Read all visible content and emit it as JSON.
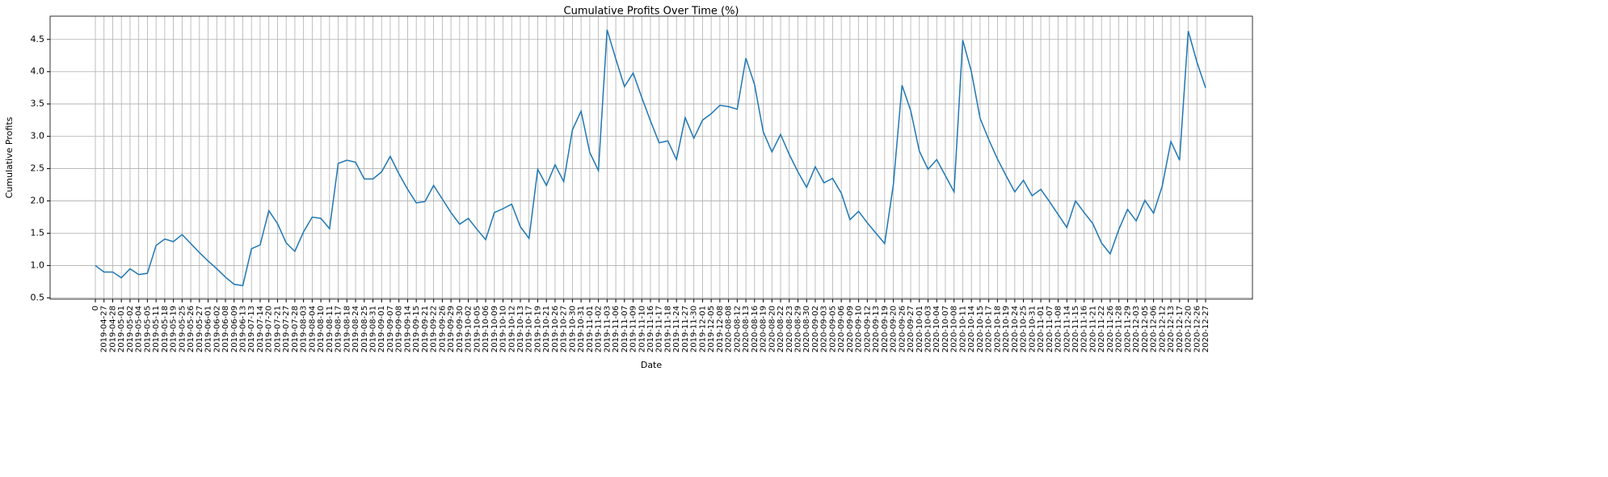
{
  "chart_data": {
    "type": "line",
    "title": "Cumulative Profits Over Time (%)",
    "x_label": "Date",
    "y_label": "Cumulative Profits",
    "categories": [
      "0",
      "2019-04-27",
      "2019-04-28",
      "2019-05-01",
      "2019-05-02",
      "2019-05-04",
      "2019-05-05",
      "2019-05-11",
      "2019-05-18",
      "2019-05-19",
      "2019-05-25",
      "2019-05-26",
      "2019-05-27",
      "2019-06-01",
      "2019-06-02",
      "2019-06-08",
      "2019-06-09",
      "2019-06-13",
      "2019-07-13",
      "2019-07-14",
      "2019-07-20",
      "2019-07-21",
      "2019-07-27",
      "2019-07-28",
      "2019-08-03",
      "2019-08-04",
      "2019-08-10",
      "2019-08-11",
      "2019-08-17",
      "2019-08-18",
      "2019-08-24",
      "2019-08-25",
      "2019-08-31",
      "2019-09-01",
      "2019-09-07",
      "2019-09-08",
      "2019-09-14",
      "2019-09-15",
      "2019-09-21",
      "2019-09-22",
      "2019-09-26",
      "2019-09-29",
      "2019-09-30",
      "2019-10-02",
      "2019-10-05",
      "2019-10-06",
      "2019-10-09",
      "2019-10-10",
      "2019-10-12",
      "2019-10-13",
      "2019-10-17",
      "2019-10-19",
      "2019-10-21",
      "2019-10-26",
      "2019-10-27",
      "2019-10-30",
      "2019-10-31",
      "2019-11-01",
      "2019-11-02",
      "2019-11-03",
      "2019-11-06",
      "2019-11-07",
      "2019-11-09",
      "2019-11-10",
      "2019-11-16",
      "2019-11-17",
      "2019-11-18",
      "2019-11-24",
      "2019-11-27",
      "2019-11-30",
      "2019-12-01",
      "2019-12-05",
      "2019-12-08",
      "2020-08-08",
      "2020-08-12",
      "2020-08-13",
      "2020-08-16",
      "2020-08-19",
      "2020-08-20",
      "2020-08-22",
      "2020-08-23",
      "2020-08-29",
      "2020-08-30",
      "2020-09-02",
      "2020-09-03",
      "2020-09-05",
      "2020-09-06",
      "2020-09-09",
      "2020-09-10",
      "2020-09-12",
      "2020-09-13",
      "2020-09-19",
      "2020-09-20",
      "2020-09-26",
      "2020-09-27",
      "2020-10-01",
      "2020-10-03",
      "2020-10-04",
      "2020-10-07",
      "2020-10-08",
      "2020-10-11",
      "2020-10-14",
      "2020-10-15",
      "2020-10-17",
      "2020-10-18",
      "2020-10-19",
      "2020-10-24",
      "2020-10-25",
      "2020-10-31",
      "2020-11-01",
      "2020-11-07",
      "2020-11-08",
      "2020-11-14",
      "2020-11-15",
      "2020-11-16",
      "2020-11-21",
      "2020-11-22",
      "2020-11-26",
      "2020-11-28",
      "2020-11-29",
      "2020-12-03",
      "2020-12-05",
      "2020-12-06",
      "2020-12-12",
      "2020-12-13",
      "2020-12-17",
      "2020-12-20",
      "2020-12-26",
      "2020-12-27"
    ],
    "series": [
      {
        "name": "Cumulative Profits",
        "color": "#1f77b4",
        "values": [
          1.0,
          0.9,
          0.9,
          0.81,
          0.95,
          0.86,
          0.88,
          1.31,
          1.41,
          1.37,
          1.48,
          1.34,
          1.2,
          1.07,
          0.95,
          0.82,
          0.71,
          0.69,
          1.26,
          1.32,
          1.85,
          1.65,
          1.35,
          1.22,
          1.52,
          1.75,
          1.73,
          1.57,
          2.58,
          2.63,
          2.6,
          2.34,
          2.34,
          2.45,
          2.69,
          2.42,
          2.18,
          1.97,
          1.99,
          2.24,
          2.03,
          1.82,
          1.64,
          1.73,
          1.56,
          1.4,
          1.82,
          1.88,
          1.95,
          1.6,
          1.42,
          2.49,
          2.24,
          2.56,
          2.3,
          3.1,
          3.39,
          2.75,
          2.47,
          4.65,
          4.2,
          3.77,
          3.98,
          3.6,
          3.24,
          2.9,
          2.93,
          2.64,
          3.29,
          2.97,
          3.25,
          3.35,
          3.48,
          3.46,
          3.42,
          4.21,
          3.8,
          3.07,
          2.76,
          3.03,
          2.72,
          2.45,
          2.21,
          2.53,
          2.28,
          2.35,
          2.12,
          1.71,
          1.84,
          1.66,
          1.5,
          1.34,
          2.25,
          3.79,
          3.4,
          2.77,
          2.49,
          2.64,
          2.39,
          2.14,
          4.49,
          4.0,
          3.28,
          2.95,
          2.65,
          2.39,
          2.14,
          2.32,
          2.08,
          2.18,
          1.99,
          1.79,
          1.59,
          2.0,
          1.82,
          1.65,
          1.35,
          1.18,
          1.56,
          1.87,
          1.69,
          2.01,
          1.81,
          2.23,
          2.92,
          2.63,
          4.63,
          4.15,
          3.75
        ]
      }
    ],
    "ylim": [
      0.48,
      4.86
    ],
    "yticks": [
      {
        "value": 0.5,
        "label": "0.5"
      },
      {
        "value": 1.0,
        "label": "1.0"
      },
      1.5,
      {
        "value": 2.0,
        "label": "2.0"
      },
      2.5,
      {
        "value": 3.0,
        "label": "3.0"
      },
      3.5,
      {
        "value": 4.0,
        "label": "4.0"
      },
      4.5
    ],
    "grid": true
  }
}
